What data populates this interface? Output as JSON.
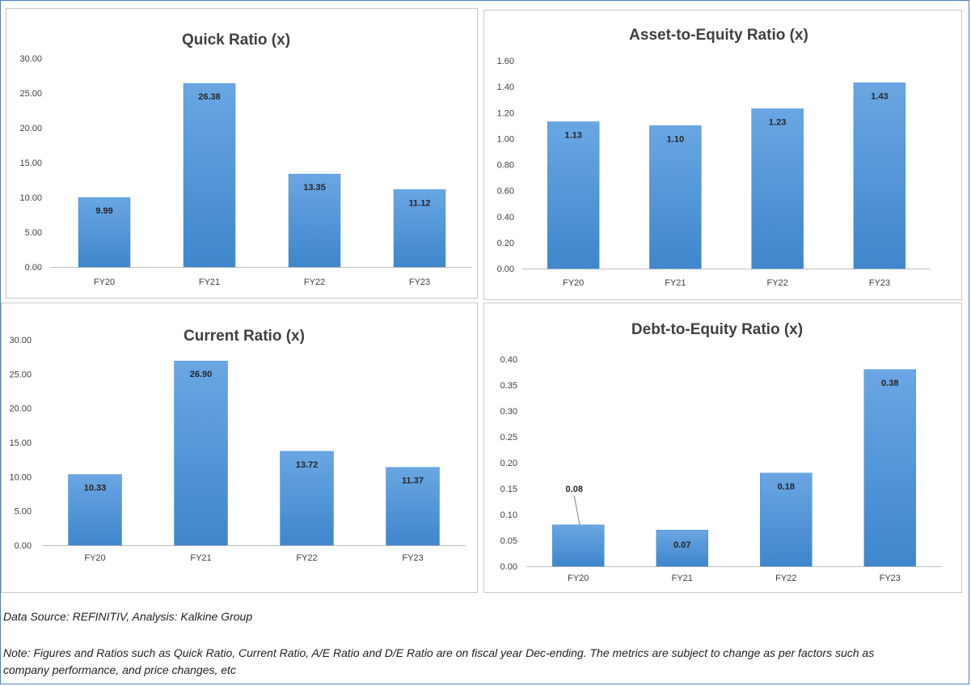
{
  "chart_data": [
    {
      "type": "bar",
      "title": "Quick Ratio (x)",
      "categories": [
        "FY20",
        "FY21",
        "FY22",
        "FY23"
      ],
      "values": [
        9.99,
        26.38,
        13.35,
        11.12
      ],
      "data_labels": [
        "9.99",
        "26.38",
        "13.35",
        "11.12"
      ],
      "ylim": [
        0,
        30
      ],
      "yticks": [
        "0.00",
        "5.00",
        "10.00",
        "15.00",
        "20.00",
        "25.00",
        "30.00"
      ],
      "grid": false,
      "bar_color": "#4a90d9"
    },
    {
      "type": "bar",
      "title": "Asset-to-Equity Ratio (x)",
      "categories": [
        "FY20",
        "FY21",
        "FY22",
        "FY23"
      ],
      "values": [
        1.13,
        1.1,
        1.23,
        1.43
      ],
      "data_labels": [
        "1.13",
        "1.10",
        "1.23",
        "1.43"
      ],
      "ylim": [
        0,
        1.6
      ],
      "yticks": [
        "0.00",
        "0.20",
        "0.40",
        "0.60",
        "0.80",
        "1.00",
        "1.20",
        "1.40",
        "1.60"
      ],
      "grid": false,
      "bar_color": "#4a90d9"
    },
    {
      "type": "bar",
      "title": "Current Ratio (x)",
      "categories": [
        "FY20",
        "FY21",
        "FY22",
        "FY23"
      ],
      "values": [
        10.33,
        26.9,
        13.72,
        11.37
      ],
      "data_labels": [
        "10.33",
        "26.90",
        "13.72",
        "11.37"
      ],
      "ylim": [
        0,
        30
      ],
      "yticks": [
        "0.00",
        "5.00",
        "10.00",
        "15.00",
        "20.00",
        "25.00",
        "30.00"
      ],
      "grid": false,
      "bar_color": "#4a90d9"
    },
    {
      "type": "bar",
      "title": "Debt-to-Equity Ratio (x)",
      "categories": [
        "FY20",
        "FY21",
        "FY22",
        "FY23"
      ],
      "values": [
        0.08,
        0.07,
        0.18,
        0.38
      ],
      "data_labels": [
        "0.08",
        "0.07",
        "0.18",
        "0.38"
      ],
      "ylim": [
        0,
        0.4
      ],
      "yticks": [
        "0.00",
        "0.05",
        "0.10",
        "0.15",
        "0.20",
        "0.25",
        "0.30",
        "0.35",
        "0.40"
      ],
      "grid": false,
      "bar_color": "#4a90d9"
    }
  ],
  "footer": {
    "source": "Data Source: REFINITIV, Analysis: Kalkine Group",
    "note_line1": "Note: Figures and Ratios such as Quick Ratio, Current Ratio, A/E Ratio and D/E Ratio are on fiscal year Dec-ending. The metrics are subject to change as per factors such as",
    "note_line2": "company performance, and price changes, etc"
  }
}
